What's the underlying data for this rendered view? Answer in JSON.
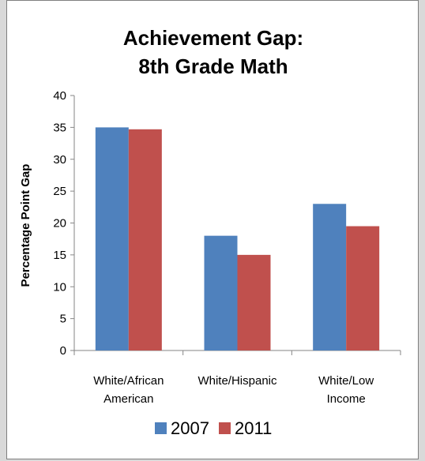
{
  "chart_data": {
    "type": "bar",
    "title_lines": [
      "Achievement Gap:",
      "8th Grade Math"
    ],
    "ylabel": "Percentage Point Gap",
    "xlabel": "",
    "ylim": [
      0,
      40
    ],
    "yticks": [
      0,
      5,
      10,
      15,
      20,
      25,
      30,
      35,
      40
    ],
    "categories": [
      [
        "White/African",
        "American"
      ],
      [
        "White/Hispanic"
      ],
      [
        "White/Low",
        "Income"
      ]
    ],
    "series": [
      {
        "name": "2007",
        "color": "#4f81bd",
        "values": [
          35,
          18,
          23
        ]
      },
      {
        "name": "2011",
        "color": "#c0504d",
        "values": [
          34.7,
          15,
          19.5
        ]
      }
    ],
    "grid": false,
    "legend_position": "bottom"
  }
}
